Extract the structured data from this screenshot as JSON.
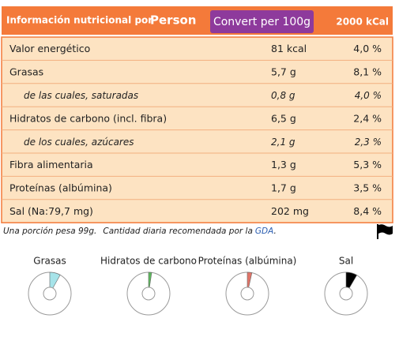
{
  "header": {
    "title": "Información nutricional por",
    "unit": "Person",
    "button": "Convert per 100g",
    "reference": "2000 kCal"
  },
  "table": {
    "rows": [
      [
        "Valor energético",
        "81 kcal",
        "4,0 %"
      ],
      [
        "Grasas",
        "5,7 g",
        "8,1 %"
      ],
      [
        "de las cuales, saturadas",
        "0,8 g",
        "4,0 %"
      ],
      [
        "Hidratos de carbono (incl. fibra)",
        "6,5 g",
        "2,4 %"
      ],
      [
        "de los cuales, azúcares",
        "2,1 g",
        "2,3 %"
      ],
      [
        "Fibra alimentaria",
        "1,3 g",
        "5,3 %"
      ],
      [
        "Proteínas (albúmina)",
        "1,7 g",
        "3,5 %"
      ],
      [
        "Sal (Na:79,7 mg)",
        "202 mg",
        "8,4 %"
      ]
    ]
  },
  "footer": {
    "note": "Una porción pesa 99g.",
    "gda_text": "Cantidad diaria recomendada por la",
    "gda_link": "GDA",
    "gda_end": "."
  },
  "gauges": [
    {
      "label": "Grasas",
      "value": 8.1,
      "color": "#a6e3e9"
    },
    {
      "label": "Hidratos de carbono",
      "value": 2.4,
      "color": "#5cb85c"
    },
    {
      "label": "Proteínas (albúmina)",
      "value": 3.5,
      "color": "#e07468"
    },
    {
      "label": "Sal",
      "value": 8.4,
      "color": "#000000"
    }
  ]
}
